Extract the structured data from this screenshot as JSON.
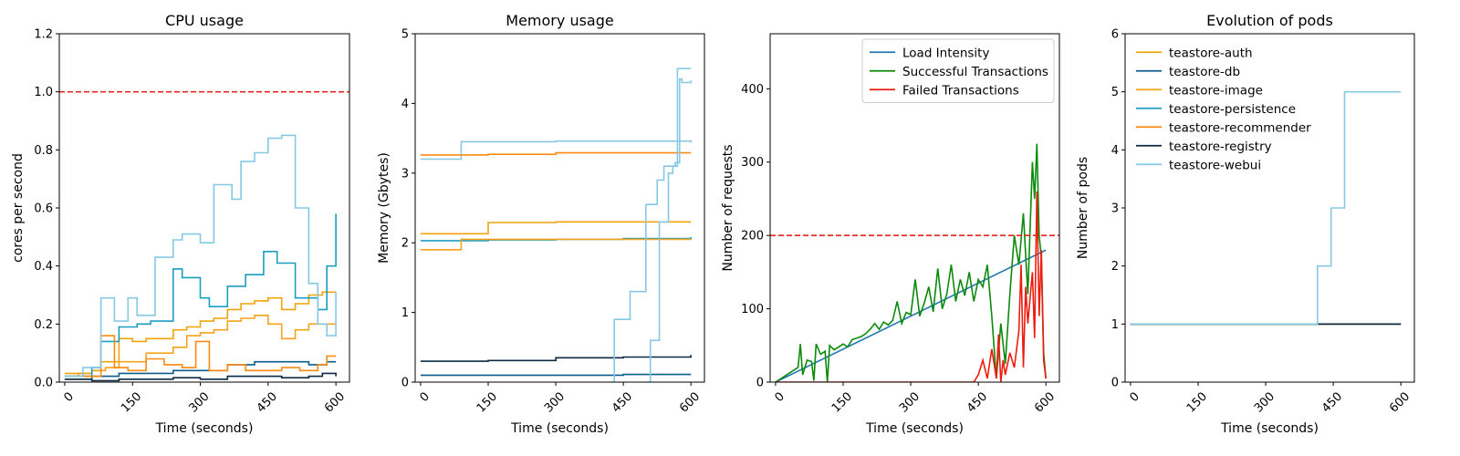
{
  "chart_data": [
    {
      "id": "cpu",
      "type": "line",
      "step": true,
      "title": "CPU usage",
      "xlabel": "Time (seconds)",
      "ylabel": "cores per second",
      "xlim": [
        -12,
        630
      ],
      "ylim": [
        0,
        1.2
      ],
      "xticks": [
        0,
        150,
        300,
        450,
        600
      ],
      "yticks": [
        0.0,
        0.2,
        0.4,
        0.6,
        0.8,
        1.0,
        1.2
      ],
      "ytick_labels": [
        "0.0",
        "0.2",
        "0.4",
        "0.6",
        "0.8",
        "1.0",
        "1.2"
      ],
      "threshold": {
        "y": 1.0,
        "color": "#e8251f"
      },
      "series": [
        {
          "color": "#f0a30a",
          "x": [
            0,
            20,
            60,
            80,
            120,
            150,
            180,
            240,
            270,
            300,
            330,
            360,
            390,
            420,
            450,
            480,
            510,
            540,
            570,
            600
          ],
          "y": [
            0.03,
            0.03,
            0.04,
            0.07,
            0.15,
            0.14,
            0.15,
            0.18,
            0.19,
            0.21,
            0.22,
            0.25,
            0.27,
            0.28,
            0.29,
            0.25,
            0.27,
            0.3,
            0.31,
            0.31
          ]
        },
        {
          "color": "#0b5d8b",
          "x": [
            0,
            60,
            120,
            180,
            240,
            300,
            360,
            420,
            480,
            540,
            580,
            600
          ],
          "y": [
            0.01,
            0.02,
            0.03,
            0.03,
            0.04,
            0.04,
            0.06,
            0.07,
            0.07,
            0.06,
            0.07,
            0.07
          ]
        },
        {
          "color": "#f7a21b",
          "x": [
            0,
            30,
            60,
            90,
            120,
            150,
            180,
            240,
            270,
            300,
            330,
            360,
            390,
            420,
            450,
            480,
            510,
            540,
            570,
            600
          ],
          "y": [
            0.02,
            0.03,
            0.04,
            0.05,
            0.07,
            0.07,
            0.1,
            0.12,
            0.16,
            0.17,
            0.18,
            0.21,
            0.22,
            0.23,
            0.2,
            0.15,
            0.18,
            0.2,
            0.2,
            0.2
          ]
        },
        {
          "color": "#1b9ec0",
          "x": [
            0,
            60,
            80,
            120,
            160,
            190,
            240,
            260,
            300,
            320,
            360,
            400,
            440,
            470,
            480,
            510,
            560,
            580,
            600
          ],
          "y": [
            0.02,
            0.05,
            0.14,
            0.19,
            0.2,
            0.21,
            0.39,
            0.36,
            0.29,
            0.26,
            0.33,
            0.37,
            0.45,
            0.41,
            0.41,
            0.29,
            0.25,
            0.4,
            0.58
          ]
        },
        {
          "color": "#fb8a10",
          "x": [
            0,
            40,
            80,
            110,
            140,
            180,
            220,
            260,
            290,
            320,
            360,
            400,
            440,
            480,
            520,
            560,
            580,
            600
          ],
          "y": [
            0.02,
            0.02,
            0.16,
            0.05,
            0.04,
            0.08,
            0.06,
            0.05,
            0.14,
            0.04,
            0.06,
            0.04,
            0.04,
            0.05,
            0.04,
            0.06,
            0.09,
            0.09
          ]
        },
        {
          "color": "#0d2a45",
          "x": [
            0,
            60,
            120,
            180,
            240,
            300,
            360,
            420,
            480,
            540,
            570,
            600
          ],
          "y": [
            0.01,
            0.005,
            0.01,
            0.01,
            0.015,
            0.01,
            0.02,
            0.02,
            0.015,
            0.02,
            0.03,
            0.02
          ]
        },
        {
          "color": "#86c9e5",
          "x": [
            0,
            40,
            80,
            110,
            140,
            160,
            200,
            240,
            260,
            300,
            330,
            370,
            390,
            420,
            450,
            480,
            510,
            540,
            560,
            580,
            600
          ],
          "y": [
            0.02,
            0.05,
            0.29,
            0.21,
            0.29,
            0.23,
            0.43,
            0.49,
            0.51,
            0.48,
            0.68,
            0.63,
            0.76,
            0.79,
            0.84,
            0.85,
            0.6,
            0.34,
            0.2,
            0.16,
            0.31
          ]
        }
      ]
    },
    {
      "id": "memory",
      "type": "line",
      "step": true,
      "title": "Memory usage",
      "xlabel": "Time (seconds)",
      "ylabel": "Memory (Gbytes)",
      "xlim": [
        -12,
        630
      ],
      "ylim": [
        0,
        5
      ],
      "xticks": [
        0,
        150,
        300,
        450,
        600
      ],
      "yticks": [
        0,
        1,
        2,
        3,
        4,
        5
      ],
      "ytick_labels": [
        "0",
        "1",
        "2",
        "3",
        "4",
        "5"
      ],
      "series": [
        {
          "color": "#86c9e5",
          "x": [
            0,
            90,
            150,
            300,
            450,
            600
          ],
          "y": [
            3.2,
            3.45,
            3.45,
            3.46,
            3.46,
            3.44
          ]
        },
        {
          "color": "#fb8a10",
          "x": [
            0,
            150,
            300,
            450,
            600
          ],
          "y": [
            3.26,
            3.27,
            3.29,
            3.29,
            3.29
          ]
        },
        {
          "color": "#f0a30a",
          "x": [
            0,
            150,
            300,
            450,
            600
          ],
          "y": [
            2.13,
            2.29,
            2.3,
            2.3,
            2.3
          ]
        },
        {
          "color": "#1b9ec0",
          "x": [
            0,
            150,
            300,
            450,
            600
          ],
          "y": [
            2.03,
            2.04,
            2.05,
            2.06,
            2.08
          ]
        },
        {
          "color": "#f7a21b",
          "x": [
            0,
            90,
            150,
            300,
            450,
            600
          ],
          "y": [
            1.9,
            2.05,
            2.05,
            2.05,
            2.05,
            2.05
          ]
        },
        {
          "color": "#0d2a45",
          "x": [
            0,
            150,
            300,
            450,
            600
          ],
          "y": [
            0.3,
            0.31,
            0.35,
            0.36,
            0.39
          ]
        },
        {
          "color": "#0b5d8b",
          "x": [
            0,
            150,
            300,
            450,
            600
          ],
          "y": [
            0.1,
            0.1,
            0.1,
            0.11,
            0.11
          ]
        },
        {
          "color": "#86c9e5",
          "x": [
            420,
            430,
            440,
            465,
            480,
            500,
            515,
            525,
            540,
            555,
            565,
            575,
            580,
            600
          ],
          "y": [
            0.0,
            0.9,
            0.9,
            1.3,
            1.3,
            2.55,
            2.55,
            2.9,
            3.1,
            3.1,
            3.15,
            4.35,
            4.3,
            4.33
          ]
        },
        {
          "color": "#86c9e5",
          "x": [
            500,
            510,
            520,
            530,
            540,
            550,
            560,
            570,
            580,
            590,
            600
          ],
          "y": [
            0.0,
            0.6,
            0.6,
            2.3,
            2.3,
            3.0,
            3.1,
            4.5,
            4.5,
            4.5,
            4.5
          ]
        }
      ]
    },
    {
      "id": "requests",
      "type": "line",
      "step": false,
      "title": "",
      "xlabel": "Time (seconds)",
      "ylabel": "Number of requests",
      "xlim": [
        -12,
        630
      ],
      "ylim": [
        0,
        475
      ],
      "xticks": [
        0,
        150,
        300,
        450,
        600
      ],
      "yticks": [
        0,
        100,
        200,
        300,
        400
      ],
      "ytick_labels": [
        "0",
        "100",
        "200",
        "300",
        "400"
      ],
      "threshold": {
        "y": 200,
        "color": "#e8251f"
      },
      "legend": "top-right",
      "series": [
        {
          "name": "Load Intensity",
          "color": "#1f77b4",
          "x": [
            0,
            600
          ],
          "y": [
            0,
            180
          ]
        },
        {
          "name": "Successful Transactions",
          "color": "#0b8a0b",
          "x": [
            0,
            20,
            40,
            50,
            55,
            60,
            70,
            80,
            85,
            90,
            100,
            110,
            115,
            120,
            130,
            140,
            150,
            160,
            170,
            180,
            190,
            200,
            210,
            220,
            230,
            240,
            250,
            260,
            270,
            280,
            290,
            300,
            310,
            320,
            330,
            340,
            350,
            360,
            370,
            380,
            390,
            400,
            410,
            420,
            430,
            440,
            450,
            460,
            470,
            480,
            490,
            500,
            510,
            520,
            530,
            540,
            550,
            560,
            570,
            575,
            580,
            585,
            590,
            595,
            600
          ],
          "y": [
            0,
            8,
            16,
            20,
            52,
            10,
            30,
            28,
            2,
            52,
            38,
            42,
            0,
            50,
            44,
            48,
            52,
            48,
            58,
            60,
            62,
            66,
            72,
            80,
            72,
            82,
            78,
            84,
            110,
            80,
            95,
            92,
            140,
            90,
            108,
            130,
            96,
            155,
            100,
            120,
            160,
            110,
            140,
            118,
            150,
            110,
            140,
            130,
            160,
            90,
            5,
            80,
            25,
            120,
            200,
            160,
            230,
            120,
            300,
            250,
            325,
            200,
            170,
            40,
            5
          ]
        },
        {
          "name": "Failed Transactions",
          "color": "#ee1c0f",
          "x": [
            0,
            440,
            450,
            460,
            470,
            480,
            490,
            495,
            500,
            505,
            510,
            520,
            530,
            540,
            545,
            550,
            555,
            560,
            570,
            575,
            580,
            585,
            590,
            595,
            600
          ],
          "y": [
            0,
            0,
            10,
            30,
            5,
            45,
            5,
            65,
            0,
            30,
            10,
            40,
            20,
            70,
            160,
            20,
            130,
            80,
            150,
            60,
            260,
            90,
            180,
            30,
            5
          ]
        }
      ]
    },
    {
      "id": "pods",
      "type": "line",
      "step": true,
      "title": "Evolution of pods",
      "xlabel": "Time (seconds)",
      "ylabel": "Number of pods",
      "xlim": [
        -12,
        630
      ],
      "ylim": [
        0,
        6
      ],
      "xticks": [
        0,
        150,
        300,
        450,
        600
      ],
      "yticks": [
        0,
        1,
        2,
        3,
        4,
        5,
        6
      ],
      "ytick_labels": [
        "0",
        "1",
        "2",
        "3",
        "4",
        "5",
        "6"
      ],
      "legend": "top-left",
      "series": [
        {
          "name": "teastore-auth",
          "color": "#f0a30a",
          "x": [
            0,
            600
          ],
          "y": [
            1,
            1
          ]
        },
        {
          "name": "teastore-db",
          "color": "#0b5d8b",
          "x": [
            0,
            600
          ],
          "y": [
            1,
            1
          ]
        },
        {
          "name": "teastore-image",
          "color": "#f7a21b",
          "x": [
            0,
            600
          ],
          "y": [
            1,
            1
          ]
        },
        {
          "name": "teastore-persistence",
          "color": "#1b9ec0",
          "x": [
            0,
            600
          ],
          "y": [
            1,
            1
          ]
        },
        {
          "name": "teastore-recommender",
          "color": "#fb8a10",
          "x": [
            0,
            600
          ],
          "y": [
            1,
            1
          ]
        },
        {
          "name": "teastore-registry",
          "color": "#0d2a45",
          "x": [
            0,
            600
          ],
          "y": [
            1,
            1
          ]
        },
        {
          "name": "teastore-webui",
          "color": "#86c9e5",
          "x": [
            0,
            415,
            445,
            475,
            600
          ],
          "y": [
            1,
            2,
            3,
            5,
            5
          ]
        }
      ]
    }
  ]
}
